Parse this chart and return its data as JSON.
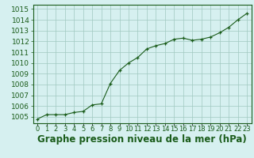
{
  "x": [
    0,
    1,
    2,
    3,
    4,
    5,
    6,
    7,
    8,
    9,
    10,
    11,
    12,
    13,
    14,
    15,
    16,
    17,
    18,
    19,
    20,
    21,
    22,
    23
  ],
  "y": [
    1004.8,
    1005.2,
    1005.2,
    1005.2,
    1005.4,
    1005.5,
    1006.1,
    1006.2,
    1008.1,
    1009.3,
    1010.0,
    1010.5,
    1011.3,
    1011.6,
    1011.8,
    1012.2,
    1012.3,
    1012.1,
    1012.2,
    1012.4,
    1012.8,
    1013.3,
    1014.0,
    1014.6
  ],
  "line_color": "#1a5c1a",
  "marker_color": "#1a5c1a",
  "bg_color": "#d6f0f0",
  "plot_bg_color": "#d6f0f0",
  "grid_color": "#a0c8c0",
  "xlabel": "Graphe pression niveau de la mer (hPa)",
  "xlabel_color": "#1a5c1a",
  "ylabel_ticks": [
    1005,
    1006,
    1007,
    1008,
    1009,
    1010,
    1011,
    1012,
    1013,
    1014,
    1015
  ],
  "ylim": [
    1004.4,
    1015.4
  ],
  "xlim": [
    -0.5,
    23.5
  ],
  "tick_color": "#1a5c1a",
  "spine_color": "#1a5c1a",
  "tick_fontsize": 6.5,
  "xlabel_fontsize": 8.5
}
